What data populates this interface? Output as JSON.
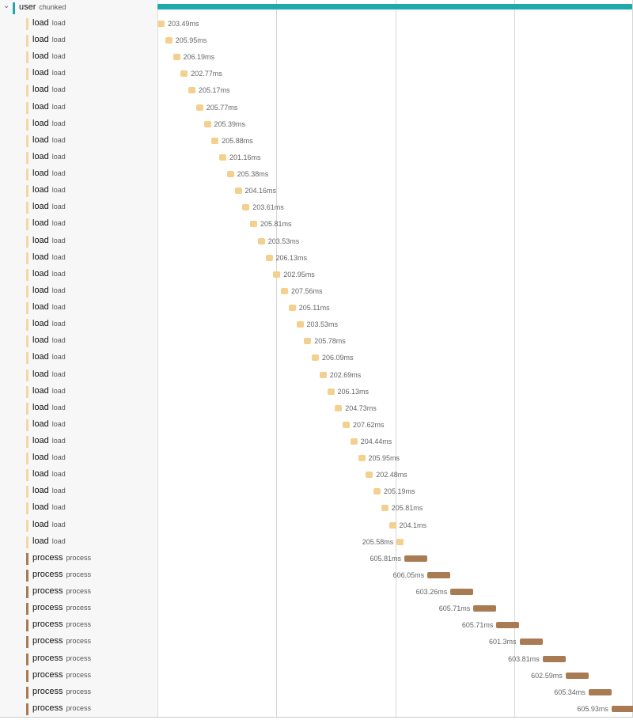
{
  "header": {
    "name": "user",
    "type": "chunked"
  },
  "rows": [
    {
      "name": "load",
      "type": "load",
      "duration": "203.49ms"
    },
    {
      "name": "load",
      "type": "load",
      "duration": "205.95ms"
    },
    {
      "name": "load",
      "type": "load",
      "duration": "206.19ms"
    },
    {
      "name": "load",
      "type": "load",
      "duration": "202.77ms"
    },
    {
      "name": "load",
      "type": "load",
      "duration": "205.17ms"
    },
    {
      "name": "load",
      "type": "load",
      "duration": "205.77ms"
    },
    {
      "name": "load",
      "type": "load",
      "duration": "205.39ms"
    },
    {
      "name": "load",
      "type": "load",
      "duration": "205.88ms"
    },
    {
      "name": "load",
      "type": "load",
      "duration": "201.16ms"
    },
    {
      "name": "load",
      "type": "load",
      "duration": "205.38ms"
    },
    {
      "name": "load",
      "type": "load",
      "duration": "204.16ms"
    },
    {
      "name": "load",
      "type": "load",
      "duration": "203.61ms"
    },
    {
      "name": "load",
      "type": "load",
      "duration": "205.81ms"
    },
    {
      "name": "load",
      "type": "load",
      "duration": "203.53ms"
    },
    {
      "name": "load",
      "type": "load",
      "duration": "206.13ms"
    },
    {
      "name": "load",
      "type": "load",
      "duration": "202.95ms"
    },
    {
      "name": "load",
      "type": "load",
      "duration": "207.56ms"
    },
    {
      "name": "load",
      "type": "load",
      "duration": "205.11ms"
    },
    {
      "name": "load",
      "type": "load",
      "duration": "203.53ms"
    },
    {
      "name": "load",
      "type": "load",
      "duration": "205.78ms"
    },
    {
      "name": "load",
      "type": "load",
      "duration": "206.09ms"
    },
    {
      "name": "load",
      "type": "load",
      "duration": "202.69ms"
    },
    {
      "name": "load",
      "type": "load",
      "duration": "206.13ms"
    },
    {
      "name": "load",
      "type": "load",
      "duration": "204.73ms"
    },
    {
      "name": "load",
      "type": "load",
      "duration": "207.62ms"
    },
    {
      "name": "load",
      "type": "load",
      "duration": "204.44ms"
    },
    {
      "name": "load",
      "type": "load",
      "duration": "205.95ms"
    },
    {
      "name": "load",
      "type": "load",
      "duration": "202.48ms"
    },
    {
      "name": "load",
      "type": "load",
      "duration": "205.19ms"
    },
    {
      "name": "load",
      "type": "load",
      "duration": "205.81ms"
    },
    {
      "name": "load",
      "type": "load",
      "duration": "204.1ms"
    },
    {
      "name": "load",
      "type": "load",
      "duration": "205.58ms"
    },
    {
      "name": "process",
      "type": "process",
      "duration": "605.81ms"
    },
    {
      "name": "process",
      "type": "process",
      "duration": "606.05ms"
    },
    {
      "name": "process",
      "type": "process",
      "duration": "603.26ms"
    },
    {
      "name": "process",
      "type": "process",
      "duration": "605.71ms"
    },
    {
      "name": "process",
      "type": "process",
      "duration": "605.71ms"
    },
    {
      "name": "process",
      "type": "process",
      "duration": "601.3ms"
    },
    {
      "name": "process",
      "type": "process",
      "duration": "603.81ms"
    },
    {
      "name": "process",
      "type": "process",
      "duration": "602.59ms"
    },
    {
      "name": "process",
      "type": "process",
      "duration": "605.34ms"
    },
    {
      "name": "process",
      "type": "process",
      "duration": "605.93ms"
    }
  ]
}
